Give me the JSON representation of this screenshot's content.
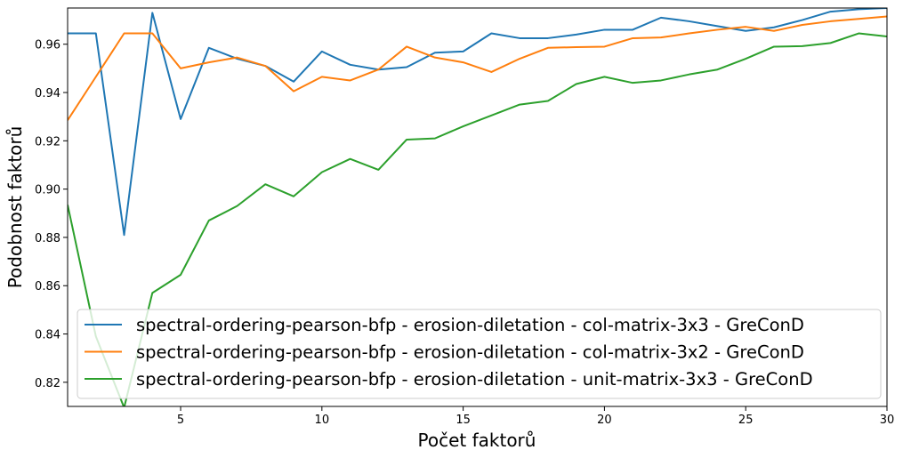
{
  "chart_data": {
    "type": "line",
    "title": "",
    "xlabel": "Počet faktorů",
    "ylabel": "Podobnost faktorů",
    "xlim": [
      1,
      30
    ],
    "ylim": [
      0.81,
      0.975
    ],
    "xticks": [
      5,
      10,
      15,
      20,
      25,
      30
    ],
    "yticks": [
      0.82,
      0.84,
      0.86,
      0.88,
      0.9,
      0.92,
      0.94,
      0.96
    ],
    "ytick_labels": [
      "0.82",
      "0.84",
      "0.86",
      "0.88",
      "0.90",
      "0.92",
      "0.94",
      "0.96"
    ],
    "grid": false,
    "legend_position": "lower-right",
    "x": [
      1,
      2,
      3,
      4,
      5,
      6,
      7,
      8,
      9,
      10,
      11,
      12,
      13,
      14,
      15,
      16,
      17,
      18,
      19,
      20,
      21,
      22,
      23,
      24,
      25,
      26,
      27,
      28,
      29,
      30
    ],
    "series": [
      {
        "name": "spectral-ordering-pearson-bfp - erosion-diletation - col-matrix-3x3 - GreConD",
        "color": "#1f77b4",
        "values": [
          0.9645,
          0.9645,
          0.881,
          0.973,
          0.929,
          0.9585,
          0.954,
          0.951,
          0.9445,
          0.957,
          0.9515,
          0.9495,
          0.9505,
          0.9565,
          0.957,
          0.9645,
          0.9625,
          0.9625,
          0.964,
          0.966,
          0.966,
          0.971,
          0.9695,
          0.9675,
          0.9655,
          0.967,
          0.97,
          0.9735,
          0.9745,
          0.975
        ]
      },
      {
        "name": "spectral-ordering-pearson-bfp - erosion-diletation - col-matrix-3x2 - GreConD",
        "color": "#ff7f0e",
        "values": [
          0.9285,
          0.9465,
          0.9645,
          0.9645,
          0.95,
          0.9525,
          0.9545,
          0.951,
          0.9405,
          0.9465,
          0.945,
          0.9495,
          0.959,
          0.9545,
          0.9525,
          0.9485,
          0.954,
          0.9585,
          0.9588,
          0.959,
          0.9625,
          0.9628,
          0.9645,
          0.966,
          0.9672,
          0.9655,
          0.968,
          0.9695,
          0.9705,
          0.9715
        ]
      },
      {
        "name": "spectral-ordering-pearson-bfp - erosion-diletation - unit-matrix-3x3 - GreConD",
        "color": "#2ca02c",
        "values": [
          0.8935,
          0.839,
          0.8095,
          0.857,
          0.8645,
          0.887,
          0.893,
          0.902,
          0.897,
          0.907,
          0.9125,
          0.908,
          0.9205,
          0.921,
          0.926,
          0.9305,
          0.935,
          0.9365,
          0.9435,
          0.9465,
          0.944,
          0.945,
          0.9475,
          0.9495,
          0.954,
          0.959,
          0.9592,
          0.9605,
          0.9645,
          0.9632
        ]
      }
    ]
  }
}
